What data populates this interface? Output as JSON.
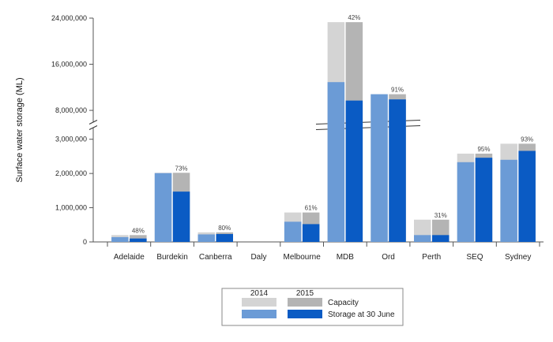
{
  "chart_data": {
    "type": "bar",
    "ylabel": "Surface water storage (ML)",
    "categories": [
      "Adelaide",
      "Burdekin",
      "Canberra",
      "Daly",
      "Melbourne",
      "MDB",
      "Ord",
      "Perth",
      "SEQ",
      "Sydney"
    ],
    "series": [
      {
        "year": "2014",
        "measure": "Capacity",
        "color": "#d4d4d4",
        "values": [
          200000,
          2020000,
          280000,
          0,
          860000,
          23300000,
          10800000,
          650000,
          2580000,
          2870000
        ]
      },
      {
        "year": "2015",
        "measure": "Capacity",
        "color": "#b4b4b4",
        "values": [
          200000,
          2020000,
          280000,
          0,
          860000,
          23300000,
          10800000,
          650000,
          2580000,
          2870000
        ]
      },
      {
        "year": "2014",
        "measure": "Storage at 30 June",
        "color": "#6b9bd6",
        "values": [
          140000,
          2010000,
          220000,
          0,
          590000,
          12900000,
          10800000,
          200000,
          2330000,
          2400000
        ]
      },
      {
        "year": "2015",
        "measure": "Storage at 30 June",
        "color": "#0a5bc4",
        "values": [
          100000,
          1470000,
          230000,
          0,
          520000,
          9700000,
          9900000,
          200000,
          2460000,
          2660000
        ]
      }
    ],
    "percent_labels": [
      "48%",
      "73%",
      "80%",
      "",
      "61%",
      "42%",
      "91%",
      "31%",
      "95%",
      "93%"
    ],
    "y_ticks_lower": [
      0,
      1000000,
      2000000,
      3000000
    ],
    "y_ticks_upper": [
      8000000,
      16000000,
      24000000
    ],
    "y_tick_labels_lower": [
      "0",
      "1,000,000",
      "2,000,000",
      "3,000,000"
    ],
    "y_tick_labels_upper": [
      "8,000,000",
      "16,000,000",
      "24,000,000"
    ],
    "axis_break": true,
    "ylim_lower": [
      0,
      3500000
    ],
    "ylim_upper": [
      5000000,
      24000000
    ],
    "legend": {
      "placement": "bottom-center",
      "years": [
        "2014",
        "2015"
      ],
      "rows": [
        "Capacity",
        "Storage at 30 June"
      ]
    }
  }
}
